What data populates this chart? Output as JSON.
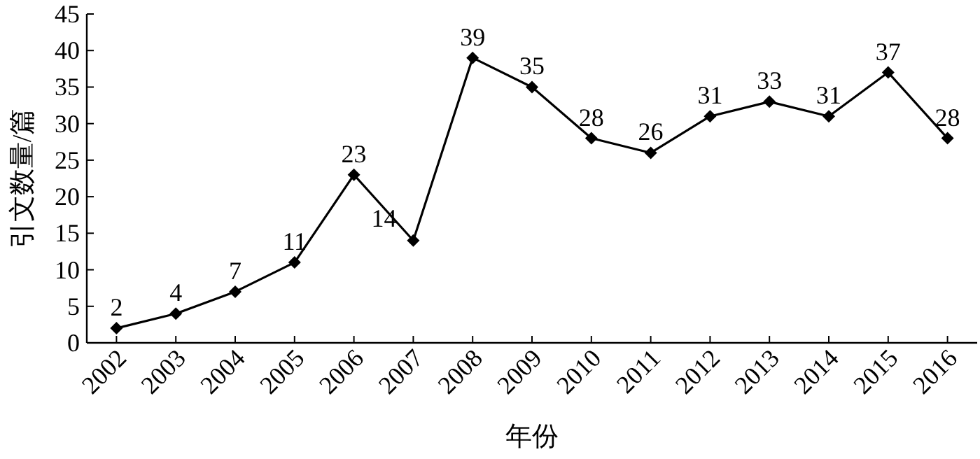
{
  "chart_data": {
    "type": "line",
    "xlabel": "年份",
    "ylabel": "引文数量/篇",
    "categories": [
      "2002",
      "2003",
      "2004",
      "2005",
      "2006",
      "2007",
      "2008",
      "2009",
      "2010",
      "2011",
      "2012",
      "2013",
      "2014",
      "2015",
      "2016"
    ],
    "values": [
      2,
      4,
      7,
      11,
      23,
      14,
      39,
      35,
      28,
      26,
      31,
      33,
      31,
      37,
      28
    ],
    "color": "#000000",
    "marker": "diamond",
    "line_style": "solid",
    "data_labels": true,
    "grid": false,
    "ylim": [
      0,
      45
    ],
    "yticks": [
      0,
      5,
      10,
      15,
      20,
      25,
      30,
      35,
      40,
      45
    ]
  }
}
